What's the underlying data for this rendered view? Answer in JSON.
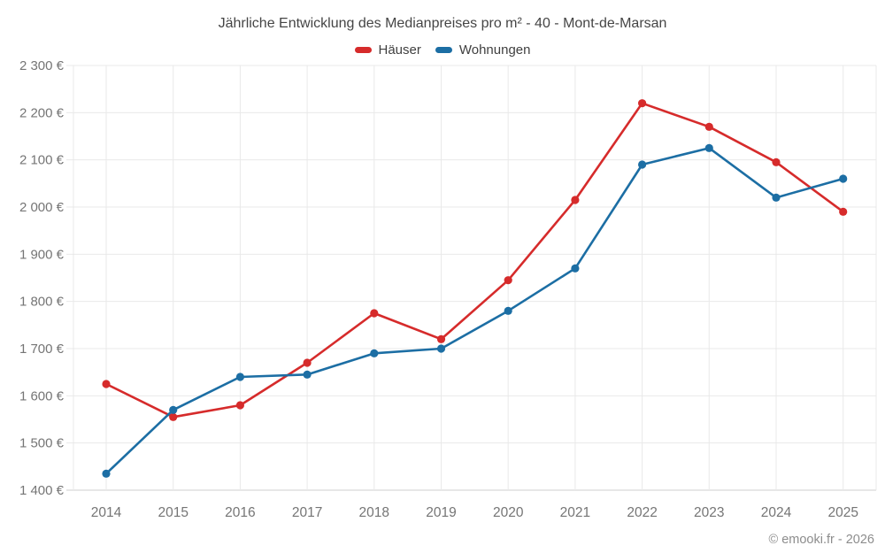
{
  "chart_data": {
    "type": "line",
    "title": "Jährliche Entwicklung des Medianpreises pro m² - 40 - Mont-de-Marsan",
    "x": [
      2014,
      2015,
      2016,
      2017,
      2018,
      2019,
      2020,
      2021,
      2022,
      2023,
      2024,
      2025
    ],
    "series": [
      {
        "name": "Häuser",
        "color": "#d62b2b",
        "values": [
          1625,
          1555,
          1580,
          1670,
          1775,
          1720,
          1845,
          2015,
          2220,
          2170,
          2095,
          1990
        ]
      },
      {
        "name": "Wohnungen",
        "color": "#1c6ea4",
        "values": [
          1435,
          1570,
          1640,
          1645,
          1690,
          1700,
          1780,
          1870,
          2090,
          2125,
          2020,
          2060
        ]
      }
    ],
    "ylim": [
      1400,
      2300
    ],
    "yticks": [
      {
        "value": 1400,
        "label": "1 400 €"
      },
      {
        "value": 1500,
        "label": "1 500 €"
      },
      {
        "value": 1600,
        "label": "1 600 €"
      },
      {
        "value": 1700,
        "label": "1 700 €"
      },
      {
        "value": 1800,
        "label": "1 800 €"
      },
      {
        "value": 1900,
        "label": "1 900 €"
      },
      {
        "value": 2000,
        "label": "2 000 €"
      },
      {
        "value": 2100,
        "label": "2 100 €"
      },
      {
        "value": 2200,
        "label": "2 200 €"
      },
      {
        "value": 2300,
        "label": "2 300 €"
      }
    ],
    "grid": true,
    "legend_position": "top",
    "grid_color": "#e9e9e9",
    "axis_line_color": "#cfcfcf",
    "tick_label_color": "#757575"
  },
  "footer": {
    "text": "© emooki.fr - 2026"
  }
}
